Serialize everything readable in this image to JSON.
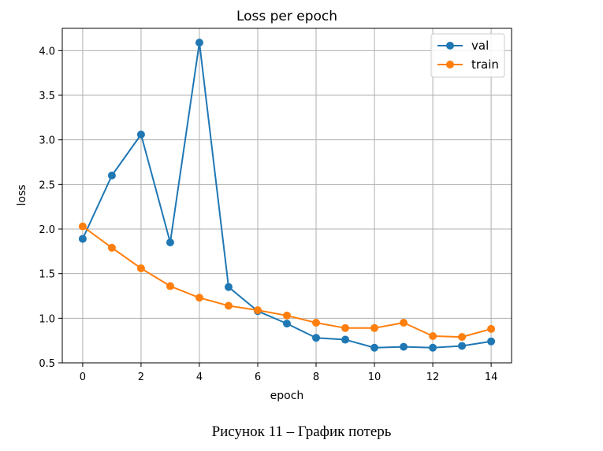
{
  "caption": "Рисунок 11 – График потерь",
  "chart_data": {
    "type": "line",
    "title": "Loss per epoch",
    "xlabel": "epoch",
    "ylabel": "loss",
    "xlim": [
      -0.7,
      14.7
    ],
    "ylim": [
      0.5,
      4.25
    ],
    "xticks": [
      0,
      2,
      4,
      6,
      8,
      10,
      12,
      14
    ],
    "xtick_labels": [
      "0",
      "2",
      "4",
      "6",
      "8",
      "10",
      "12",
      "14"
    ],
    "yticks": [
      0.5,
      1.0,
      1.5,
      2.0,
      2.5,
      3.0,
      3.5,
      4.0
    ],
    "ytick_labels": [
      "0.5",
      "1.0",
      "1.5",
      "2.0",
      "2.5",
      "3.0",
      "3.5",
      "4.0"
    ],
    "grid": true,
    "legend_position": "top-right",
    "x": [
      0,
      1,
      2,
      3,
      4,
      5,
      6,
      7,
      8,
      9,
      10,
      11,
      12,
      13,
      14
    ],
    "series": [
      {
        "name": "val",
        "color": "#1f77b4",
        "marker": "circle",
        "values": [
          1.89,
          2.6,
          3.06,
          1.85,
          4.09,
          1.35,
          1.08,
          0.94,
          0.78,
          0.76,
          0.67,
          0.68,
          0.67,
          0.69,
          0.74
        ]
      },
      {
        "name": "train",
        "color": "#ff7f0e",
        "marker": "circle",
        "values": [
          2.03,
          1.79,
          1.56,
          1.36,
          1.23,
          1.14,
          1.09,
          1.03,
          0.95,
          0.89,
          0.89,
          0.95,
          0.8,
          0.79,
          0.88
        ]
      }
    ]
  }
}
